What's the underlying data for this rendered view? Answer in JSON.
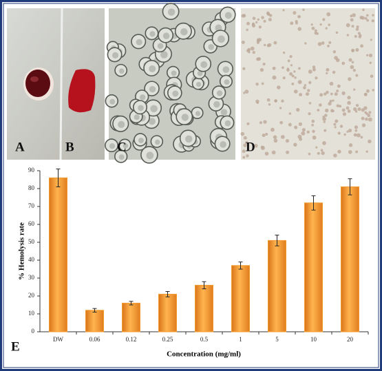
{
  "panels": [
    "A",
    "B",
    "C",
    "D",
    "E"
  ],
  "chart_data": {
    "type": "bar",
    "y_label": "% Hemolysis rate",
    "x_label": "Concentration (mg/ml)",
    "categories": [
      "DW",
      "0.06",
      "0.12",
      "0.25",
      "0.5",
      "1",
      "5",
      "10",
      "20"
    ],
    "values": [
      86,
      12,
      16,
      21,
      26,
      37,
      51,
      72,
      81
    ],
    "errors": [
      5,
      1,
      1,
      1.5,
      2,
      2,
      3,
      4,
      4.5
    ],
    "color": "#f39a2c",
    "ylim": [
      0,
      90
    ],
    "yticks": [
      0,
      10,
      20,
      30,
      40,
      50,
      60,
      70,
      80,
      90
    ]
  }
}
